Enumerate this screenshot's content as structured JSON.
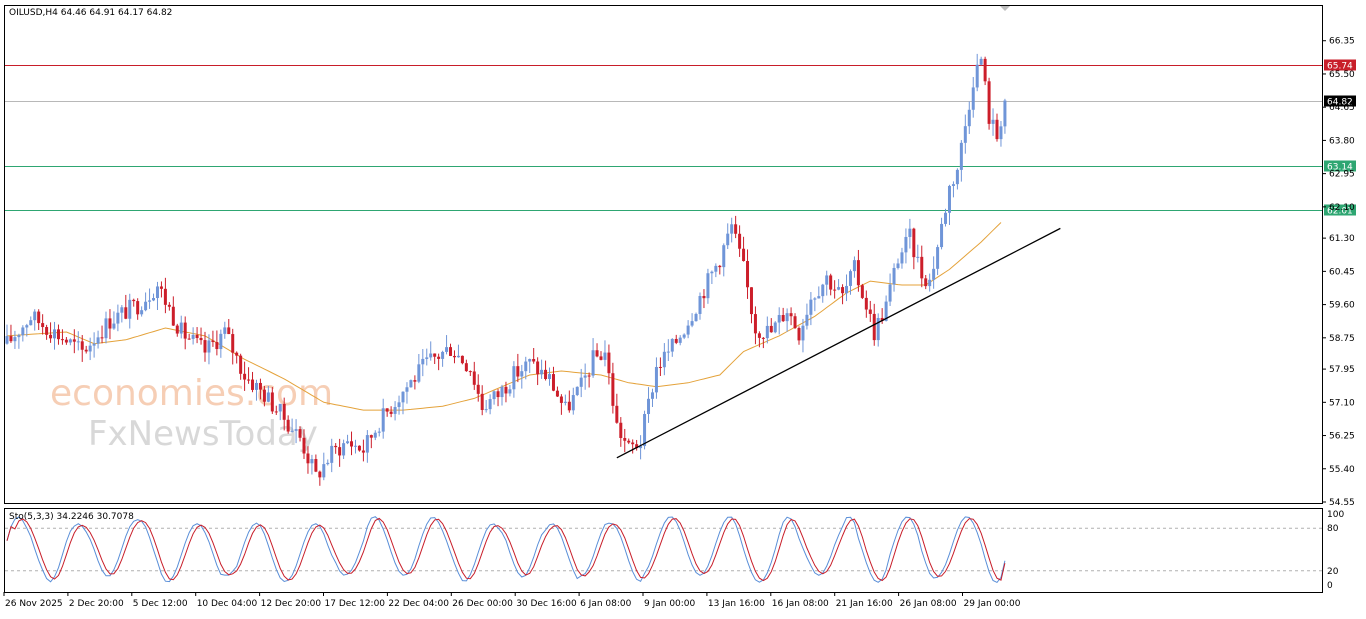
{
  "header": {
    "text": "OILUSD,H4  64.46 64.91 64.17 64.82"
  },
  "sub_header": {
    "text": "Sto(5,3,3) 34.2246 30.7078"
  },
  "watermark": {
    "line1": "economies.com",
    "line2": "FxNewsToday"
  },
  "colors": {
    "bull": "#6f95d8",
    "bear": "#cc1e2a",
    "ma": "#e4a23a",
    "resistance": "#c81e2a",
    "support": "#2ea672",
    "current": "#b8b8b8",
    "trendline": "#000000",
    "stoch_main": "#5a8fd8",
    "stoch_signal": "#c81e2a"
  },
  "chart_data": [
    {
      "type": "candlestick",
      "symbol": "OILUSD",
      "timeframe": "H4",
      "ylim": [
        54.55,
        66.65
      ],
      "y_ticks": [
        "66.35",
        "65.50",
        "64.65",
        "63.80",
        "62.95",
        "62.10",
        "61.30",
        "60.45",
        "59.60",
        "58.75",
        "57.95",
        "57.10",
        "56.25",
        "55.40",
        "54.55"
      ],
      "x_ticks": [
        "26 Nov 2025",
        "2 Dec 20:00",
        "5 Dec 12:00",
        "10 Dec 04:00",
        "12 Dec 20:00",
        "17 Dec 12:00",
        "22 Dec 04:00",
        "26 Dec 00:00",
        "30 Dec 16:00",
        "6 Jan 08:00",
        "9 Jan 00:00",
        "13 Jan 16:00",
        "16 Jan 08:00",
        "21 Jan 16:00",
        "26 Jan 08:00",
        "29 Jan 00:00"
      ],
      "levels": [
        {
          "label": "65.74",
          "value": 65.74,
          "kind": "resistance"
        },
        {
          "label": "64.82",
          "value": 64.82,
          "kind": "current"
        },
        {
          "label": "63.14",
          "value": 63.14,
          "kind": "support"
        },
        {
          "label": "62.01",
          "value": 62.01,
          "kind": "support"
        }
      ],
      "close_path": [
        [
          0,
          58.6
        ],
        [
          6,
          59.3
        ],
        [
          12,
          58.9
        ],
        [
          19,
          58.4
        ],
        [
          26,
          59.2
        ],
        [
          33,
          59.6
        ],
        [
          38,
          60.1
        ],
        [
          44,
          58.9
        ],
        [
          50,
          58.4
        ],
        [
          55,
          58.9
        ],
        [
          60,
          57.8
        ],
        [
          65,
          57.3
        ],
        [
          70,
          56.7
        ],
        [
          74,
          56.2
        ],
        [
          78,
          55.2
        ],
        [
          82,
          55.8
        ],
        [
          86,
          56.1
        ],
        [
          90,
          55.9
        ],
        [
          94,
          56.6
        ],
        [
          100,
          57.4
        ],
        [
          106,
          58.1
        ],
        [
          112,
          58.5
        ],
        [
          117,
          58.0
        ],
        [
          120,
          57.0
        ],
        [
          124,
          57.3
        ],
        [
          128,
          57.8
        ],
        [
          132,
          58.1
        ],
        [
          137,
          57.7
        ],
        [
          141,
          56.9
        ],
        [
          145,
          57.5
        ],
        [
          148,
          58.2
        ],
        [
          151,
          58.4
        ],
        [
          154,
          56.5
        ],
        [
          157,
          55.9
        ],
        [
          160,
          56.1
        ],
        [
          164,
          58.0
        ],
        [
          168,
          58.5
        ],
        [
          172,
          59.2
        ],
        [
          176,
          60.0
        ],
        [
          180,
          60.8
        ],
        [
          183,
          61.6
        ],
        [
          186,
          60.5
        ],
        [
          189,
          59.0
        ],
        [
          193,
          58.9
        ],
        [
          197,
          59.5
        ],
        [
          200,
          58.9
        ],
        [
          203,
          59.8
        ],
        [
          207,
          60.3
        ],
        [
          211,
          59.8
        ],
        [
          214,
          60.5
        ],
        [
          217,
          59.6
        ],
        [
          219,
          58.9
        ],
        [
          222,
          59.6
        ],
        [
          225,
          60.8
        ],
        [
          228,
          61.3
        ],
        [
          231,
          60.4
        ],
        [
          233,
          60.2
        ],
        [
          235,
          61.1
        ],
        [
          238,
          62.6
        ],
        [
          240,
          63.1
        ],
        [
          242,
          64.2
        ],
        [
          244,
          65.4
        ],
        [
          246,
          65.9
        ],
        [
          248,
          64.4
        ],
        [
          250,
          63.9
        ],
        [
          252,
          64.82
        ]
      ],
      "ma_path": [
        [
          0,
          58.8
        ],
        [
          15,
          58.9
        ],
        [
          22,
          58.6
        ],
        [
          30,
          58.7
        ],
        [
          40,
          59.0
        ],
        [
          50,
          58.8
        ],
        [
          60,
          58.2
        ],
        [
          70,
          57.7
        ],
        [
          80,
          57.1
        ],
        [
          90,
          56.9
        ],
        [
          100,
          56.9
        ],
        [
          110,
          57.0
        ],
        [
          118,
          57.2
        ],
        [
          125,
          57.5
        ],
        [
          132,
          57.8
        ],
        [
          140,
          57.9
        ],
        [
          150,
          57.8
        ],
        [
          157,
          57.6
        ],
        [
          164,
          57.5
        ],
        [
          172,
          57.6
        ],
        [
          180,
          57.8
        ],
        [
          186,
          58.4
        ],
        [
          195,
          58.8
        ],
        [
          204,
          59.3
        ],
        [
          212,
          59.9
        ],
        [
          218,
          60.2
        ],
        [
          226,
          60.1
        ],
        [
          232,
          60.1
        ],
        [
          238,
          60.5
        ],
        [
          246,
          61.2
        ],
        [
          251,
          61.7
        ]
      ],
      "trendline": {
        "from": [
          154,
          55.68
        ],
        "to": [
          266,
          61.55
        ]
      },
      "stochastic": {
        "k_period": 5,
        "d_period": 3,
        "slowing": 3,
        "main": 34.2246,
        "signal": 30.7078,
        "ylim": [
          0,
          100
        ],
        "y_ticks": [
          "100",
          "80",
          "20",
          "0"
        ],
        "levels": [
          80,
          20
        ]
      }
    }
  ]
}
